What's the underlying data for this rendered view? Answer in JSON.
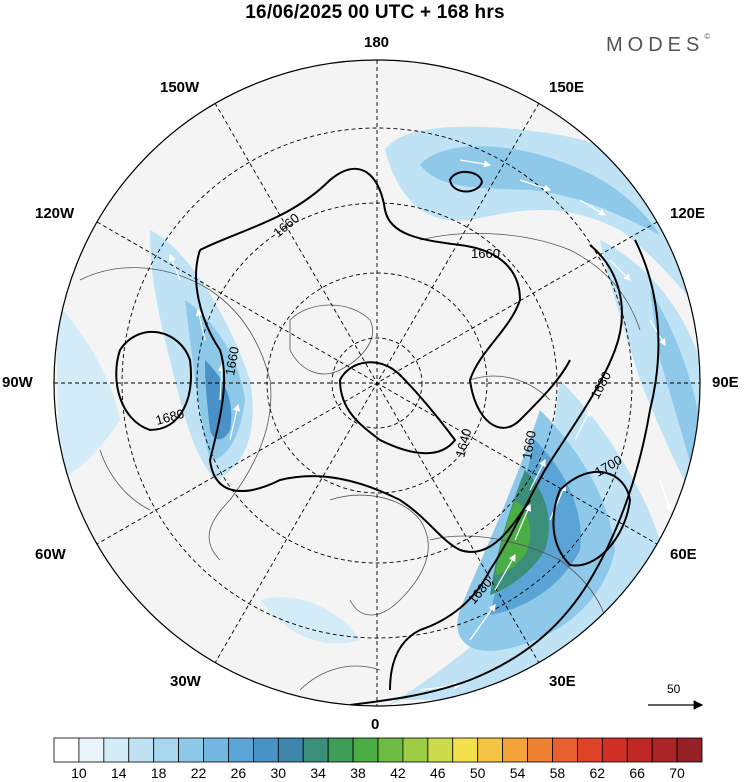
{
  "header": {
    "title": "16/06/2025  00 UTC  + 168 hrs",
    "brand": "MODES",
    "brand_mark": "©"
  },
  "map": {
    "projection": "north-polar-stereographic",
    "longitude_labels": {
      "top": "180",
      "top_left": "150W",
      "top_right": "150E",
      "upper_left": "120W",
      "upper_right": "120E",
      "left": "90W",
      "right": "90E",
      "lower_left": "60W",
      "lower_right": "60E",
      "bottom_left": "30W",
      "bottom_right": "30E",
      "bottom": "0"
    },
    "contour_labels": [
      "1660",
      "1660",
      "1660",
      "1680",
      "1640",
      "1660",
      "1680",
      "1700",
      "1680"
    ],
    "wind_reference": {
      "value": "50",
      "icon": "arrow-right-icon"
    }
  },
  "colorbar": {
    "labels": [
      "10",
      "14",
      "18",
      "22",
      "26",
      "30",
      "34",
      "38",
      "42",
      "46",
      "50",
      "54",
      "58",
      "62",
      "66",
      "70"
    ],
    "colors": [
      "#ffffff",
      "#eaf5fb",
      "#d4ecf8",
      "#bfe3f5",
      "#a7d7f0",
      "#8ec9ea",
      "#74b7e0",
      "#5aa4d6",
      "#4892c8",
      "#3f86ad",
      "#3b8f7a",
      "#3f9d57",
      "#4aae44",
      "#6dbd42",
      "#9dcc45",
      "#cddb4b",
      "#f3e24d",
      "#f6c443",
      "#f4a33b",
      "#ef8133",
      "#e8602d",
      "#df4429",
      "#d22f27",
      "#c02826",
      "#ab2426",
      "#972026"
    ]
  }
}
